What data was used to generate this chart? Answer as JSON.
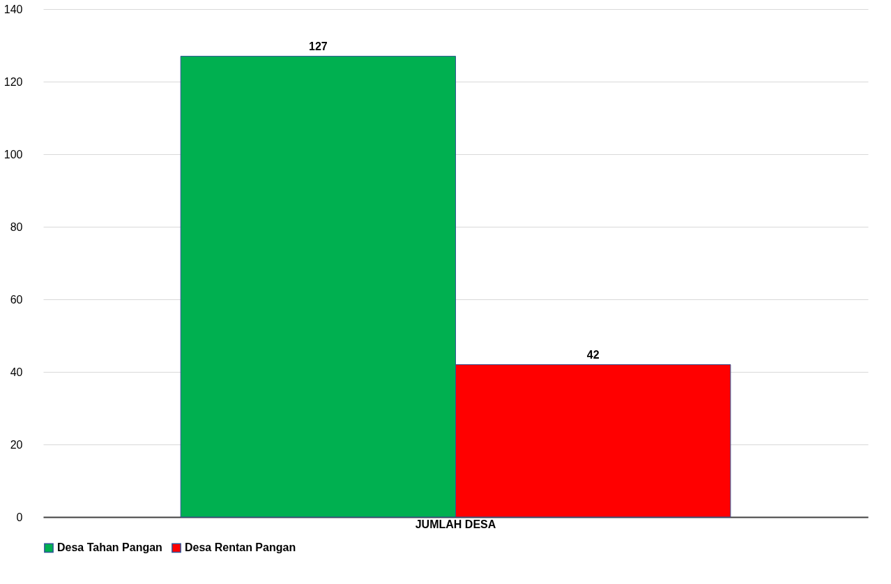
{
  "chart_data": {
    "type": "bar",
    "categories": [
      "JUMLAH DESA"
    ],
    "series": [
      {
        "name": "Desa Tahan Pangan",
        "color": "#00b050",
        "values": [
          127
        ]
      },
      {
        "name": "Desa Rentan Pangan",
        "color": "#ff0000",
        "values": [
          42
        ]
      }
    ],
    "ylim": [
      0,
      140
    ],
    "yticks": [
      0,
      20,
      40,
      60,
      80,
      100,
      120,
      140
    ],
    "grid": "y",
    "legend": "bottom",
    "data_labels": true
  }
}
